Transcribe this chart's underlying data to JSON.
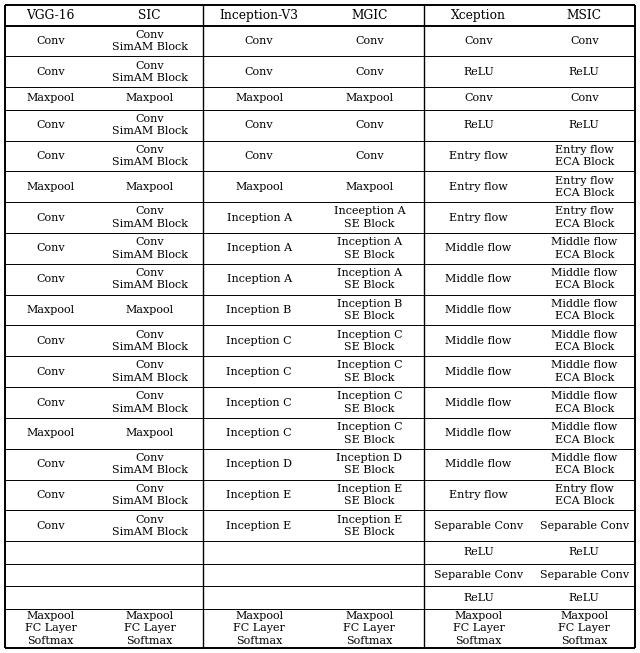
{
  "headers": [
    "VGG-16",
    "SIC",
    "Inception-V3",
    "MGIC",
    "Xception",
    "MSIC"
  ],
  "rows": [
    [
      "Conv",
      "Conv\nSimAM Block",
      "Conv",
      "Conv",
      "Conv",
      "Conv"
    ],
    [
      "Conv",
      "Conv\nSimAM Block",
      "Conv",
      "Conv",
      "ReLU",
      "ReLU"
    ],
    [
      "Maxpool",
      "Maxpool",
      "Maxpool",
      "Maxpool",
      "Conv",
      "Conv"
    ],
    [
      "Conv",
      "Conv\nSimAM Block",
      "Conv",
      "Conv",
      "ReLU",
      "ReLU"
    ],
    [
      "Conv",
      "Conv\nSimAM Block",
      "Conv",
      "Conv",
      "Entry flow",
      "Entry flow\nECA Block"
    ],
    [
      "Maxpool",
      "Maxpool",
      "Maxpool",
      "Maxpool",
      "Entry flow",
      "Entry flow\nECA Block"
    ],
    [
      "Conv",
      "Conv\nSimAM Block",
      "Inception A",
      "Inceeption A\nSE Block",
      "Entry flow",
      "Entry flow\nECA Block"
    ],
    [
      "Conv",
      "Conv\nSimAM Block",
      "Inception A",
      "Inception A\nSE Block",
      "Middle flow",
      "Middle flow\nECA Block"
    ],
    [
      "Conv",
      "Conv\nSimAM Block",
      "Inception A",
      "Inception A\nSE Block",
      "Middle flow",
      "Middle flow\nECA Block"
    ],
    [
      "Maxpool",
      "Maxpool",
      "Inception B",
      "Inception B\nSE Block",
      "Middle flow",
      "Middle flow\nECA Block"
    ],
    [
      "Conv",
      "Conv\nSimAM Block",
      "Inception C",
      "Inception C\nSE Block",
      "Middle flow",
      "Middle flow\nECA Block"
    ],
    [
      "Conv",
      "Conv\nSimAM Block",
      "Inception C",
      "Inception C\nSE Block",
      "Middle flow",
      "Middle flow\nECA Block"
    ],
    [
      "Conv",
      "Conv\nSimAM Block",
      "Inception C",
      "Inception C\nSE Block",
      "Middle flow",
      "Middle flow\nECA Block"
    ],
    [
      "Maxpool",
      "Maxpool",
      "Inception C",
      "Inception C\nSE Block",
      "Middle flow",
      "Middle flow\nECA Block"
    ],
    [
      "Conv",
      "Conv\nSimAM Block",
      "Inception D",
      "Inception D\nSE Block",
      "Middle flow",
      "Middle flow\nECA Block"
    ],
    [
      "Conv",
      "Conv\nSimAM Block",
      "Inception E",
      "Inception E\nSE Block",
      "Entry flow",
      "Entry flow\nECA Block"
    ],
    [
      "Conv",
      "Conv\nSimAM Block",
      "Inception E",
      "Inception E\nSE Block",
      "Separable Conv",
      "Separable Conv"
    ],
    [
      "",
      "",
      "",
      "",
      "ReLU",
      "ReLU"
    ],
    [
      "",
      "",
      "",
      "",
      "Separable Conv",
      "Separable Conv"
    ],
    [
      "",
      "",
      "",
      "",
      "ReLU",
      "ReLU"
    ],
    [
      "Maxpool\nFC Layer\nSoftmax",
      "Maxpool\nFC Layer\nSoftmax",
      "Maxpool\nFC Layer\nSoftmax",
      "Maxpool\nFC Layer\nSoftmax",
      "Maxpool\nFC Layer\nSoftmax",
      "Maxpool\nFC Layer\nSoftmax"
    ]
  ],
  "row_types": [
    "d",
    "d",
    "s",
    "d",
    "d",
    "d",
    "d",
    "d",
    "d",
    "d",
    "d",
    "d",
    "d",
    "d",
    "d",
    "d",
    "d",
    "s",
    "s",
    "s",
    "t"
  ],
  "background_color": "#ffffff",
  "text_color": "#000000",
  "line_color": "#000000",
  "header_fontsize": 8.8,
  "cell_fontsize": 8.0
}
